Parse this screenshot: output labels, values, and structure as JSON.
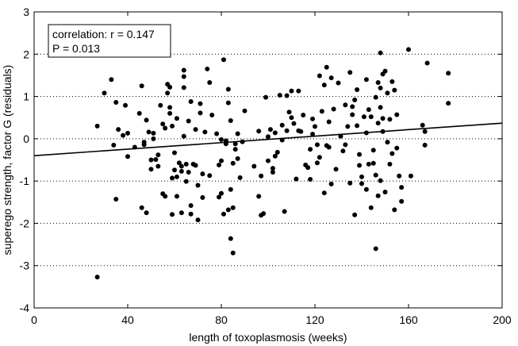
{
  "chart_data": {
    "type": "scatter",
    "title": "",
    "xlabel": "length of toxoplasmosis (weeks)",
    "ylabel": "superego strength, factor G (residuals)",
    "xlim": [
      0,
      200
    ],
    "ylim": [
      -4,
      3
    ],
    "xticks": [
      0,
      40,
      80,
      120,
      160,
      200
    ],
    "yticks": [
      -4,
      -3,
      -2,
      -1,
      0,
      1,
      2,
      3
    ],
    "grid": "horizontal dotted",
    "annotation": [
      "correlation: r = 0.147",
      "P = 0.013"
    ],
    "regression_line": {
      "x": [
        0,
        200
      ],
      "y": [
        -0.4,
        0.37
      ]
    },
    "points": [
      [
        27,
        -3.27
      ],
      [
        27,
        0.3
      ],
      [
        30,
        1.08
      ],
      [
        33,
        1.4
      ],
      [
        34,
        -0.15
      ],
      [
        35,
        0.86
      ],
      [
        35,
        -1.43
      ],
      [
        36,
        0.22
      ],
      [
        38,
        0.08
      ],
      [
        39,
        0.79
      ],
      [
        40,
        -0.42
      ],
      [
        40,
        0.13
      ],
      [
        43,
        -0.2
      ],
      [
        45,
        0.6
      ],
      [
        46,
        1.25
      ],
      [
        46,
        -1.63
      ],
      [
        47,
        -0.08
      ],
      [
        47,
        -0.14
      ],
      [
        48,
        0.44
      ],
      [
        48,
        -1.75
      ],
      [
        49,
        0.16
      ],
      [
        50,
        -0.5
      ],
      [
        50,
        -0.72
      ],
      [
        51,
        0.13
      ],
      [
        51,
        0.0
      ],
      [
        52,
        -0.49
      ],
      [
        53,
        -0.38
      ],
      [
        53,
        -0.65
      ],
      [
        54,
        0.79
      ],
      [
        55,
        -1.3
      ],
      [
        55,
        0.35
      ],
      [
        56,
        0.25
      ],
      [
        56,
        -1.36
      ],
      [
        57,
        1.29
      ],
      [
        57,
        1.08
      ],
      [
        58,
        1.22
      ],
      [
        58,
        0.74
      ],
      [
        58,
        0.6
      ],
      [
        59,
        0.3
      ],
      [
        59,
        -0.93
      ],
      [
        59,
        -1.79
      ],
      [
        60,
        -0.33
      ],
      [
        60,
        -0.74
      ],
      [
        61,
        0.48
      ],
      [
        61,
        -0.9
      ],
      [
        61,
        -1.36
      ],
      [
        62,
        -0.57
      ],
      [
        63,
        -0.65
      ],
      [
        63,
        -0.77
      ],
      [
        63,
        -1.75
      ],
      [
        64,
        1.62
      ],
      [
        64,
        1.47
      ],
      [
        64,
        1.21
      ],
      [
        64,
        0.06
      ],
      [
        65,
        -0.6
      ],
      [
        65,
        -1.01
      ],
      [
        66,
        0.42
      ],
      [
        66,
        -0.79
      ],
      [
        67,
        0.88
      ],
      [
        67,
        -1.58
      ],
      [
        67,
        -1.78
      ],
      [
        68,
        -0.6
      ],
      [
        69,
        0.22
      ],
      [
        69,
        -0.63
      ],
      [
        70,
        -1.1
      ],
      [
        70,
        -1.92
      ],
      [
        71,
        0.83
      ],
      [
        71,
        0.61
      ],
      [
        72,
        -0.83
      ],
      [
        72,
        -1.39
      ],
      [
        73,
        0.16
      ],
      [
        74,
        1.65
      ],
      [
        75,
        1.33
      ],
      [
        75,
        -0.87
      ],
      [
        76,
        0.56
      ],
      [
        78,
        0.12
      ],
      [
        79,
        -1.38
      ],
      [
        79,
        -0.62
      ],
      [
        80,
        -0.02
      ],
      [
        80,
        -0.52
      ],
      [
        80,
        -1.29
      ],
      [
        81,
        1.87
      ],
      [
        81,
        -1.78
      ],
      [
        82,
        -0.05
      ],
      [
        82,
        -0.12
      ],
      [
        83,
        1.17
      ],
      [
        83,
        0.85
      ],
      [
        83,
        -1.68
      ],
      [
        84,
        -1.2
      ],
      [
        84,
        -2.36
      ],
      [
        84,
        0.43
      ],
      [
        85,
        -0.58
      ],
      [
        85,
        -1.63
      ],
      [
        85,
        -2.7
      ],
      [
        86,
        -0.12
      ],
      [
        86,
        -0.25
      ],
      [
        87,
        0.12
      ],
      [
        87,
        -0.47
      ],
      [
        88,
        -0.92
      ],
      [
        89,
        -0.07
      ],
      [
        90,
        0.66
      ],
      [
        94,
        -0.65
      ],
      [
        96,
        0.18
      ],
      [
        96,
        -1.36
      ],
      [
        97,
        -0.88
      ],
      [
        97,
        -1.81
      ],
      [
        98,
        -1.77
      ],
      [
        99,
        0.98
      ],
      [
        100,
        0.05
      ],
      [
        100,
        -0.52
      ],
      [
        101,
        0.22
      ],
      [
        102,
        -0.7
      ],
      [
        102,
        -0.79
      ],
      [
        103,
        0.14
      ],
      [
        103,
        -0.41
      ],
      [
        104,
        -0.32
      ],
      [
        105,
        1.03
      ],
      [
        106,
        -0.03
      ],
      [
        106,
        0.32
      ],
      [
        107,
        -1.72
      ],
      [
        108,
        1.02
      ],
      [
        108,
        0.19
      ],
      [
        109,
        0.63
      ],
      [
        110,
        1.13
      ],
      [
        110,
        0.5
      ],
      [
        111,
        0.36
      ],
      [
        112,
        -0.95
      ],
      [
        113,
        1.13
      ],
      [
        113,
        0.19
      ],
      [
        114,
        0.17
      ],
      [
        115,
        0.56
      ],
      [
        116,
        -0.62
      ],
      [
        117,
        -0.68
      ],
      [
        118,
        -0.25
      ],
      [
        118,
        -0.96
      ],
      [
        119,
        0.47
      ],
      [
        119,
        0.11
      ],
      [
        120,
        0.29
      ],
      [
        121,
        -0.14
      ],
      [
        121,
        -0.57
      ],
      [
        122,
        1.49
      ],
      [
        122,
        -0.44
      ],
      [
        123,
        0.65
      ],
      [
        124,
        1.27
      ],
      [
        124,
        -1.28
      ],
      [
        125,
        1.69
      ],
      [
        125,
        -0.16
      ],
      [
        126,
        0.4
      ],
      [
        126,
        -0.2
      ],
      [
        127,
        1.44
      ],
      [
        127,
        -1.07
      ],
      [
        128,
        0.7
      ],
      [
        129,
        -0.72
      ],
      [
        130,
        1.32
      ],
      [
        131,
        0.06
      ],
      [
        132,
        -0.29
      ],
      [
        133,
        0.8
      ],
      [
        133,
        -0.14
      ],
      [
        134,
        0.29
      ],
      [
        135,
        1.57
      ],
      [
        135,
        -1.05
      ],
      [
        136,
        0.76
      ],
      [
        136,
        0.57
      ],
      [
        137,
        0.92
      ],
      [
        137,
        -1.8
      ],
      [
        138,
        1.16
      ],
      [
        138,
        0.31
      ],
      [
        139,
        -0.37
      ],
      [
        139,
        -0.63
      ],
      [
        140,
        -0.9
      ],
      [
        140,
        -1.06
      ],
      [
        141,
        0.52
      ],
      [
        142,
        1.4
      ],
      [
        142,
        0.14
      ],
      [
        142,
        -1.2
      ],
      [
        143,
        0.69
      ],
      [
        143,
        -0.6
      ],
      [
        144,
        0.52
      ],
      [
        144,
        -1.63
      ],
      [
        145,
        -0.27
      ],
      [
        145,
        -0.58
      ],
      [
        146,
        0.98
      ],
      [
        146,
        -0.86
      ],
      [
        146,
        -2.6
      ],
      [
        147,
        1.33
      ],
      [
        147,
        0.37
      ],
      [
        147,
        -1.35
      ],
      [
        148,
        2.03
      ],
      [
        148,
        1.2
      ],
      [
        148,
        0.74
      ],
      [
        148,
        -0.99
      ],
      [
        149,
        1.53
      ],
      [
        149,
        0.48
      ],
      [
        149,
        0.17
      ],
      [
        150,
        1.6
      ],
      [
        150,
        -1.26
      ],
      [
        151,
        1.08
      ],
      [
        151,
        -0.08
      ],
      [
        152,
        0.46
      ],
      [
        152,
        -0.6
      ],
      [
        153,
        1.35
      ],
      [
        153,
        -0.35
      ],
      [
        154,
        1.15
      ],
      [
        154,
        -1.68
      ],
      [
        155,
        0.57
      ],
      [
        155,
        -0.22
      ],
      [
        156,
        -0.88
      ],
      [
        157,
        -1.15
      ],
      [
        157,
        -1.48
      ],
      [
        160,
        2.11
      ],
      [
        161,
        -0.88
      ],
      [
        166,
        0.32
      ],
      [
        167,
        -0.15
      ],
      [
        167,
        0.17
      ],
      [
        168,
        1.79
      ],
      [
        177,
        1.55
      ],
      [
        177,
        0.84
      ]
    ]
  }
}
